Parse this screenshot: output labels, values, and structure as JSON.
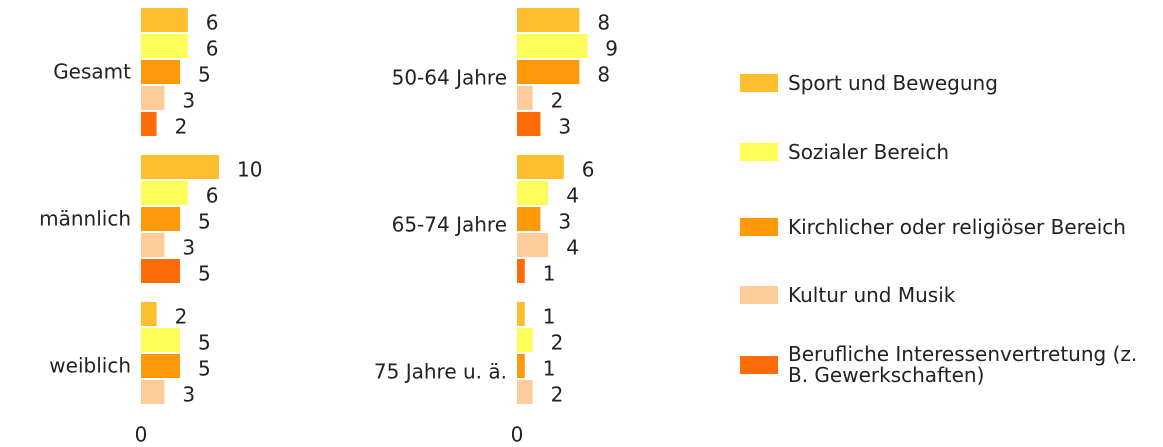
{
  "chart_data": {
    "type": "bar",
    "orientation": "horizontal",
    "categories": [
      "Gesamt",
      "männlich",
      "weiblich",
      "50-64 Jahre",
      "65-74 Jahre",
      "75 Jahre u. ä."
    ],
    "series": [
      {
        "name": "Sport und Bewegung",
        "color": "#fdbf2d",
        "values": [
          6,
          10,
          2,
          8,
          6,
          1
        ]
      },
      {
        "name": "Sozialer Bereich",
        "color": "#fdfd5a",
        "values": [
          6,
          6,
          5,
          9,
          4,
          2
        ]
      },
      {
        "name": "Kirchlicher oder religiöser Bereich",
        "color": "#fe9a0a",
        "values": [
          5,
          5,
          5,
          8,
          3,
          1
        ]
      },
      {
        "name": "Kultur und Musik",
        "color": "#fecb9a",
        "values": [
          3,
          3,
          3,
          2,
          4,
          2
        ]
      },
      {
        "name": "Berufliche Interessenvertretung (z. B. Gewerkschaften)",
        "color": "#fe6c0a",
        "values": [
          2,
          5,
          0,
          3,
          1,
          0
        ]
      }
    ],
    "legend": "right"
  }
}
